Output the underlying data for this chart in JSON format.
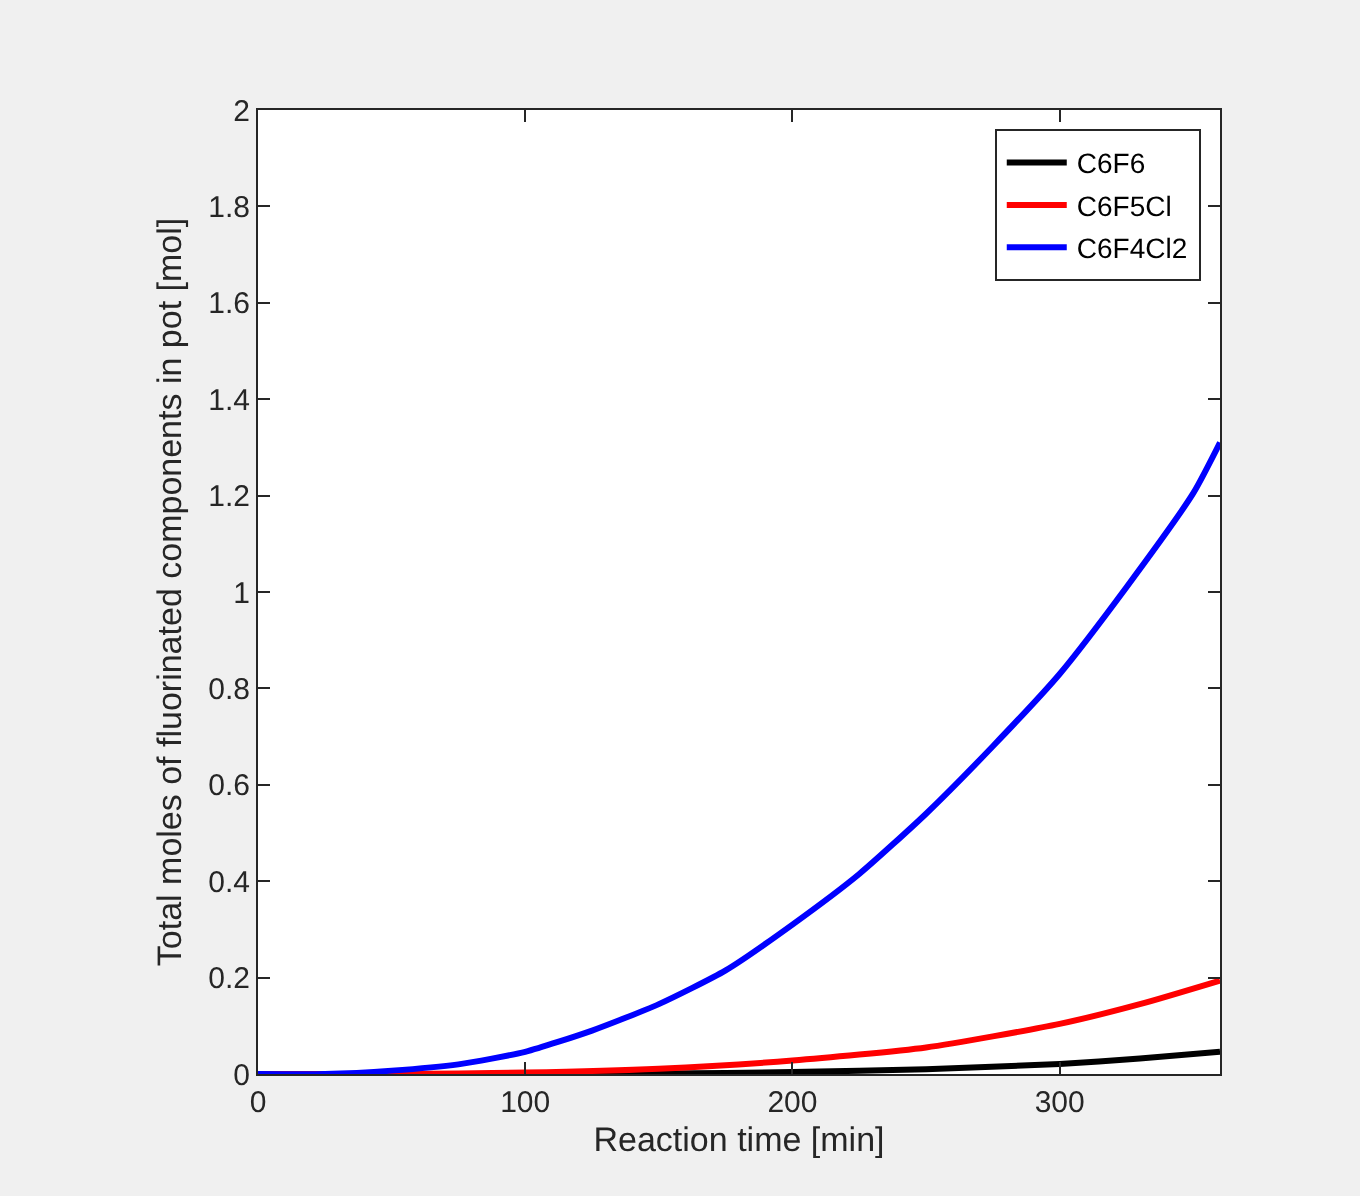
{
  "chart_data": {
    "type": "line",
    "xlabel": "Reaction time [min]",
    "ylabel": "Total moles of fluorinated components in pot [mol]",
    "xlim": [
      0,
      360
    ],
    "xticks": [
      0,
      100,
      200,
      300
    ],
    "ylim": [
      0,
      2
    ],
    "yticks": [
      0,
      0.2,
      0.4,
      0.6,
      0.8,
      1,
      1.2,
      1.4,
      1.6,
      1.8,
      2
    ],
    "grid": false,
    "legend": "top right",
    "line_style": "solid",
    "marker": "none",
    "series": [
      {
        "name": "C6F6",
        "color": "#000000",
        "x": [
          0,
          100,
          150,
          200,
          250,
          300,
          330,
          360
        ],
        "values": [
          0,
          0,
          0.001,
          0.004,
          0.01,
          0.021,
          0.032,
          0.046
        ]
      },
      {
        "name": "C6F5Cl",
        "color": "#ff0000",
        "x": [
          0,
          50,
          100,
          150,
          200,
          250,
          300,
          330,
          360
        ],
        "values": [
          0,
          0,
          0.003,
          0.011,
          0.028,
          0.055,
          0.104,
          0.145,
          0.194
        ]
      },
      {
        "name": "C6F4Cl2",
        "color": "#0000ff",
        "x": [
          0,
          25,
          50,
          75,
          100,
          125,
          150,
          175,
          200,
          225,
          250,
          275,
          300,
          325,
          350,
          360
        ],
        "values": [
          0,
          0,
          0.007,
          0.02,
          0.046,
          0.09,
          0.145,
          0.215,
          0.31,
          0.415,
          0.54,
          0.68,
          0.83,
          1.01,
          1.205,
          1.31
        ]
      }
    ]
  }
}
